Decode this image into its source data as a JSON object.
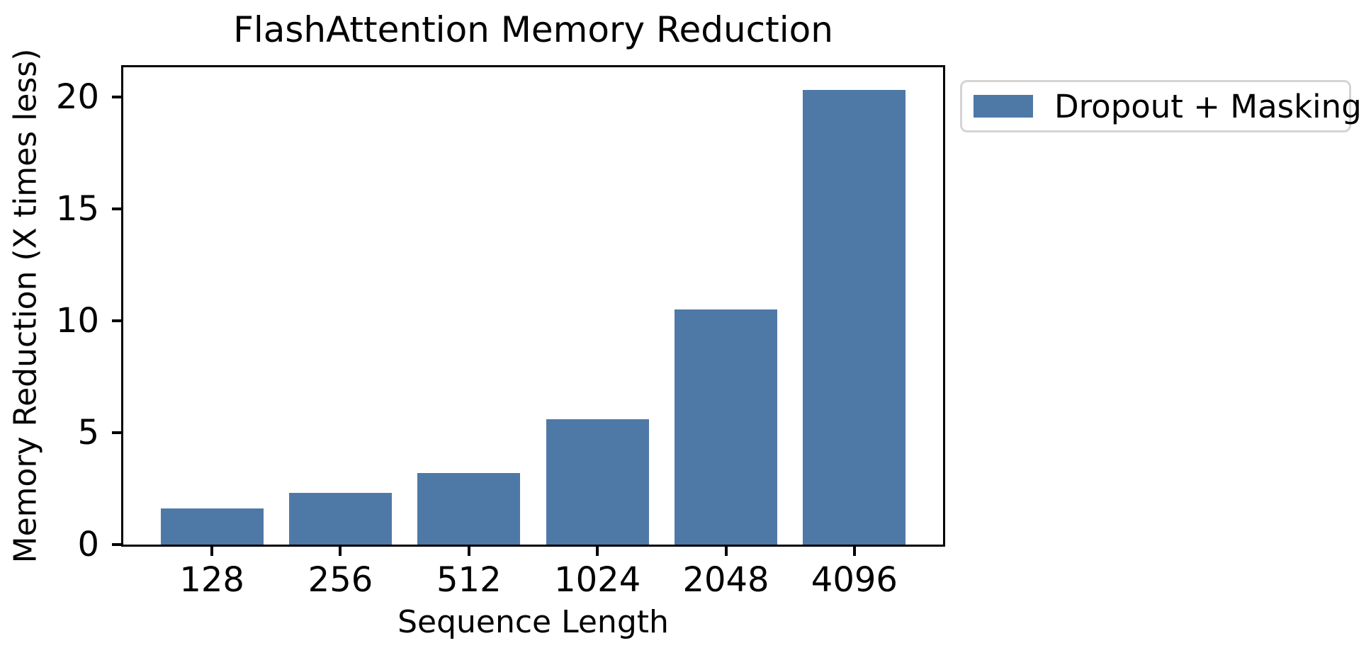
{
  "chart_data": {
    "type": "bar",
    "title": "FlashAttention Memory Reduction",
    "xlabel": "Sequence Length",
    "ylabel": "Memory Reduction (X times less)",
    "categories": [
      "128",
      "256",
      "512",
      "1024",
      "2048",
      "4096"
    ],
    "values": [
      1.6,
      2.3,
      3.2,
      5.6,
      10.5,
      20.3
    ],
    "series_name": "Dropout + Masking",
    "yticks": [
      0,
      5,
      10,
      15,
      20
    ],
    "ylim": [
      0,
      21.32
    ],
    "grid": false,
    "bar_color": "#4E79A7",
    "legend": {
      "label": "Dropout + Masking",
      "position": "upper-right-outside",
      "border_color": "#d4d4d4"
    }
  }
}
